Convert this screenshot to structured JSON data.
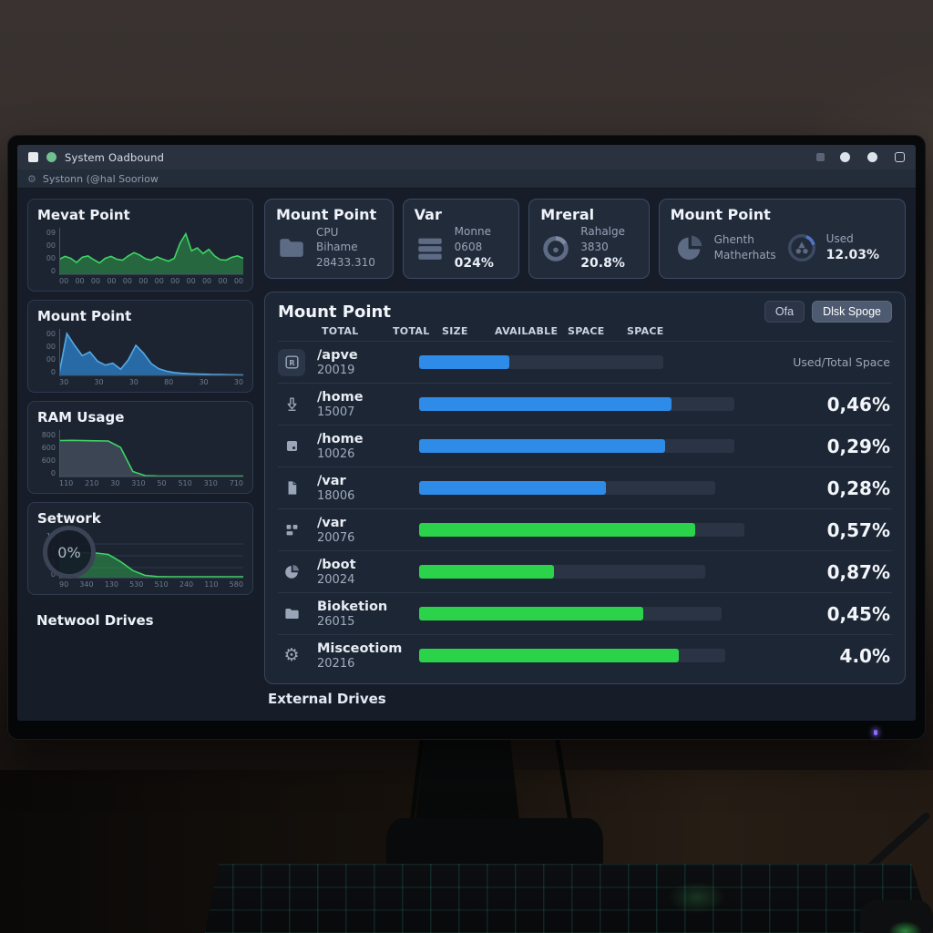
{
  "colors": {
    "bar_blue": "#2f8be8",
    "bar_green": "#2bd34b",
    "chart_green_line": "#3fd463",
    "chart_blue_line": "#53a9e8"
  },
  "window": {
    "title": "System Oadbound",
    "menubar": "Systonn (@hal Sooriow"
  },
  "sidebar": {
    "network_drives_label": "Netwool Drives"
  },
  "chart_data": [
    {
      "type": "area",
      "title": "Mevat Point",
      "color": "green",
      "values": [
        3.2,
        3.8,
        3.4,
        2.5,
        3.6,
        3.9,
        3.1,
        2.4,
        3.4,
        3.8,
        3.2,
        3.0,
        3.9,
        4.6,
        4.1,
        3.3,
        3.0,
        3.7,
        3.2,
        2.8,
        3.4,
        6.6,
        8.6,
        5.0,
        5.6,
        4.4,
        5.3,
        3.9,
        3.1,
        3.0,
        3.6,
        3.9,
        3.4
      ],
      "ymax": 9.5,
      "yticks": [
        "09",
        "00",
        "00",
        "0"
      ],
      "xticks": [
        "00",
        "00",
        "00",
        "00",
        "00",
        "00",
        "00",
        "00",
        "00",
        "00",
        "00",
        "00"
      ]
    },
    {
      "type": "area",
      "title": "Mount Point",
      "color": "blue",
      "values": [
        0.4,
        8.9,
        6.4,
        4.2,
        5.0,
        3.0,
        2.2,
        2.6,
        1.3,
        3.3,
        6.4,
        4.7,
        2.5,
        1.4,
        0.9,
        0.6,
        0.45,
        0.35,
        0.3,
        0.25,
        0.2,
        0.17,
        0.14,
        0.12,
        0.1
      ],
      "ymax": 9.5,
      "yticks": [
        "00",
        "00",
        "00",
        "0"
      ],
      "xticks": [
        "30",
        "30",
        "30",
        "80",
        "30",
        "30"
      ]
    },
    {
      "type": "area",
      "title": "RAM Usage",
      "color": "gray",
      "values": [
        645,
        648,
        644,
        640,
        636,
        520,
        90,
        16,
        10,
        8,
        8,
        8,
        8,
        8,
        8,
        8
      ],
      "ymax": 800,
      "yticks": [
        "800",
        "600",
        "600",
        "0"
      ],
      "xticks": [
        "110",
        "210",
        "30",
        "310",
        "50",
        "510",
        "310",
        "710"
      ]
    },
    {
      "type": "area",
      "title": "Setwork",
      "color": "green",
      "grid": true,
      "gauge": "0%",
      "values": [
        5.6,
        5.7,
        5.6,
        5.5,
        5.2,
        3.6,
        1.6,
        0.5,
        0.25,
        0.2,
        0.2,
        0.2,
        0.2,
        0.2,
        0.2,
        0.2
      ],
      "ymax": 10,
      "yticks": [
        "10",
        "7",
        "5",
        "0"
      ],
      "xticks": [
        "90",
        "340",
        "130",
        "530",
        "510",
        "240",
        "110",
        "580"
      ]
    }
  ],
  "cards": [
    {
      "title": "Mount Point",
      "icon": "folder-icon",
      "lines": [
        "CPU",
        "Bihame",
        "28433.310"
      ]
    },
    {
      "title": "Var",
      "icon": "list-icon",
      "lines": [
        "Monne",
        "0608",
        "024%"
      ]
    },
    {
      "title": "Mreral",
      "icon": "donut-icon",
      "lines": [
        "Rahalge",
        "3830",
        "20.8%"
      ]
    },
    {
      "title": "Mount Point",
      "icon": "pie-icon",
      "lines": [
        "Ghenth",
        "Matherhats"
      ],
      "icon2": "gauge-icon",
      "lines2": [
        "Used",
        "12.03%"
      ]
    }
  ],
  "main": {
    "title": "Mount Point",
    "buttons": [
      {
        "label": "Ofa",
        "active": false
      },
      {
        "label": "Dlsk Spoge",
        "active": true
      }
    ],
    "columns": [
      "TOTAL",
      "TOTAL",
      "SIZE",
      "AVAILABLE",
      "SPACE",
      "SPACE"
    ],
    "legend": "Used/Total Space",
    "rows": [
      {
        "icon": "badge-r-icon",
        "mount": "/apve",
        "value": "20019",
        "color": "blue",
        "track": 75,
        "fill": 37,
        "right": "Used/Total Space",
        "right_small": true
      },
      {
        "icon": "arrow-down-icon",
        "mount": "/home",
        "value": "15007",
        "color": "blue",
        "track": 97,
        "fill": 80,
        "right": "0,46%"
      },
      {
        "icon": "drive-icon",
        "mount": "/home",
        "value": "10026",
        "color": "blue",
        "track": 97,
        "fill": 78,
        "right": "0,29%"
      },
      {
        "icon": "file-icon",
        "mount": "/var",
        "value": "18006",
        "color": "blue",
        "track": 91,
        "fill": 63,
        "right": "0,28%"
      },
      {
        "icon": "plug-icon",
        "mount": "/var",
        "value": "20076",
        "color": "green",
        "track": 100,
        "fill": 85,
        "right": "0,57%"
      },
      {
        "icon": "pie-icon",
        "mount": "/boot",
        "value": "20024",
        "color": "green",
        "track": 88,
        "fill": 47,
        "right": "0,87%"
      },
      {
        "icon": "folder-icon",
        "mount": "Bioketion",
        "value": "26015",
        "color": "green",
        "track": 93,
        "fill": 74,
        "right": "0,45%"
      },
      {
        "icon": "gear-icon",
        "mount": "Misceotiom",
        "value": "20216",
        "color": "green",
        "track": 94,
        "fill": 85,
        "right": "4.0%"
      }
    ],
    "footer": "External Drives"
  }
}
